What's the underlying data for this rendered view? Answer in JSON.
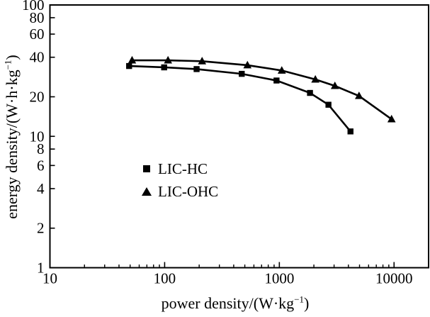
{
  "figure": {
    "background": "#ffffff",
    "ink_color": "#000000"
  },
  "axes": {
    "x_label": {
      "pre": "power density/(W·kg",
      "sup": "−1",
      "post": ")"
    },
    "y_label": {
      "pre": "energy density/(W·h·kg",
      "sup": "−1",
      "post": ")"
    }
  },
  "legend": {
    "items": [
      {
        "label": "LIC-HC",
        "marker": "square"
      },
      {
        "label": "LIC-OHC",
        "marker": "triangle"
      }
    ]
  },
  "chart_data": {
    "type": "line",
    "title": "",
    "xlabel": "power density/(W·kg−1)",
    "ylabel": "energy density/(W·h·kg−1)",
    "x_scale": "log",
    "y_scale": "log",
    "xlim": [
      10,
      20000
    ],
    "ylim": [
      1,
      100
    ],
    "x_ticks": [
      10,
      100,
      1000,
      10000
    ],
    "x_tick_labels": [
      "10",
      "100",
      "1000",
      "10000"
    ],
    "y_ticks": [
      1,
      2,
      4,
      6,
      8,
      10,
      20,
      40,
      60,
      80,
      100
    ],
    "y_tick_labels": [
      "1",
      "2",
      "4",
      "6",
      "8",
      "10",
      "20",
      "40",
      "60",
      "80",
      "100"
    ],
    "grid": false,
    "legend_position": "inside-center-left",
    "line_color": "#000000",
    "series": [
      {
        "name": "LIC-HC",
        "marker": "square",
        "x": [
          49,
          99,
          190,
          470,
          945,
          1850,
          2680,
          4170
        ],
        "y": [
          34.3,
          33.5,
          32.5,
          29.9,
          26.6,
          21.4,
          17.4,
          10.9
        ]
      },
      {
        "name": "LIC-OHC",
        "marker": "triangle",
        "x": [
          52,
          107,
          212,
          527,
          1050,
          2060,
          3050,
          4950,
          9510
        ],
        "y": [
          37.9,
          37.9,
          37.3,
          34.8,
          31.7,
          27.1,
          24.2,
          20.3,
          13.5
        ]
      }
    ]
  }
}
